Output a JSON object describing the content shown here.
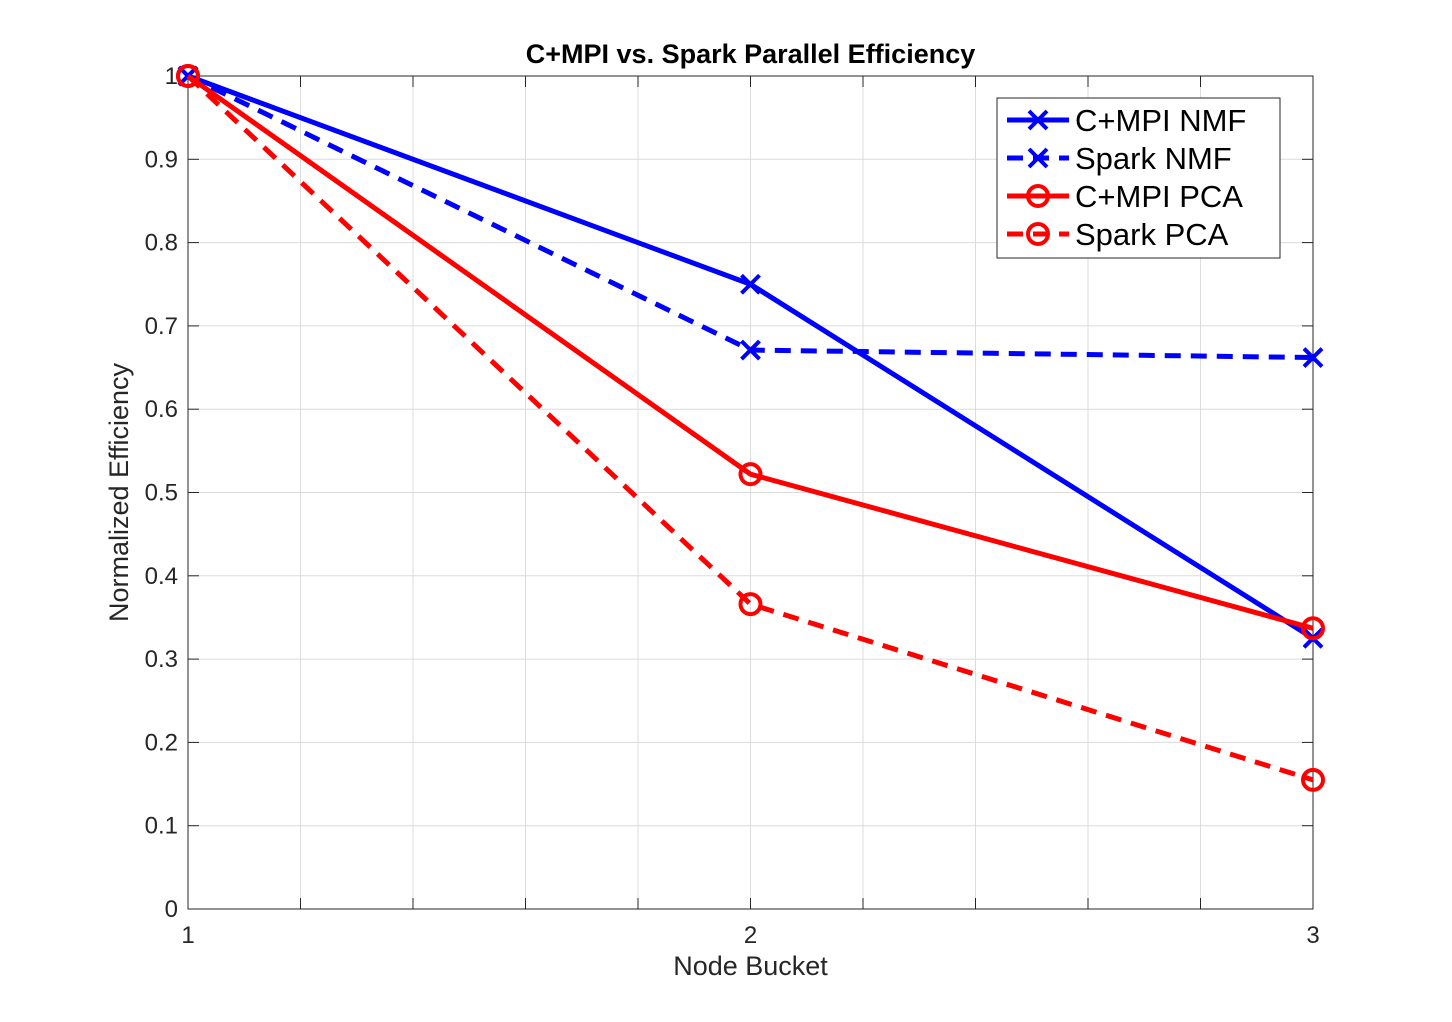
{
  "chart_data": {
    "type": "line",
    "title": "C+MPI vs. Spark Parallel Efficiency",
    "xlabel": "Node Bucket",
    "ylabel": "Normalized Efficiency",
    "x": [
      1,
      2,
      3
    ],
    "xlim": [
      1,
      3
    ],
    "ylim": [
      0,
      1
    ],
    "xticks": [
      "1",
      "2",
      "3"
    ],
    "yticks": [
      "0",
      "0.1",
      "0.2",
      "0.3",
      "0.4",
      "0.5",
      "0.6",
      "0.7",
      "0.8",
      "0.9",
      "1"
    ],
    "grid": true,
    "legend_placement": "top-right",
    "series": [
      {
        "name": "C+MPI NMF",
        "values": [
          1.0,
          0.75,
          0.325
        ],
        "color": "#0000ff",
        "dash": "solid",
        "marker": "x"
      },
      {
        "name": "Spark NMF",
        "values": [
          1.0,
          0.671,
          0.662
        ],
        "color": "#0000ff",
        "dash": "dashed",
        "marker": "x"
      },
      {
        "name": "C+MPI PCA",
        "values": [
          1.0,
          0.522,
          0.337
        ],
        "color": "#ff0000",
        "dash": "solid",
        "marker": "circle"
      },
      {
        "name": "Spark PCA",
        "values": [
          1.0,
          0.366,
          0.155
        ],
        "color": "#ff0000",
        "dash": "dashed",
        "marker": "circle"
      }
    ]
  }
}
